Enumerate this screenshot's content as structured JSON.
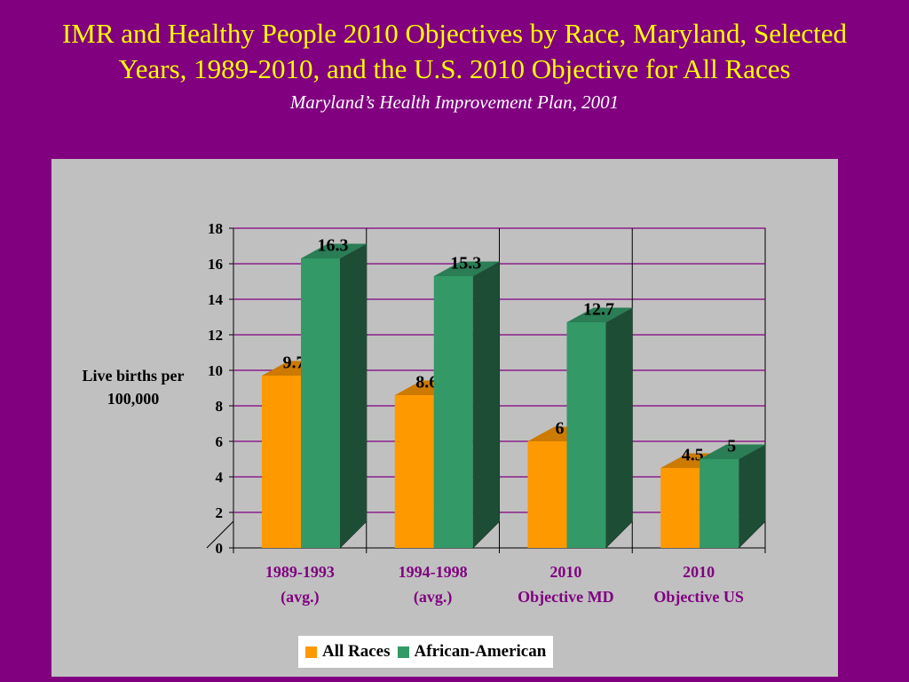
{
  "title_line1": "IMR and Healthy People 2010 Objectives by Race, Maryland, Selected",
  "title_line2": "Years, 1989-2010, and the U.S. 2010 Objective for All Races",
  "subtitle": "Maryland’s Health Improvement Plan, 2001",
  "colors": {
    "background": "#800080",
    "title": "#ffff00",
    "panel": "#c0c0c0",
    "all_races": "#ff9900",
    "african_american": "#339966"
  },
  "chart_data": {
    "type": "bar",
    "title": "IMR and Healthy People 2010 Objectives by Race, Maryland, Selected Years, 1989-2010, and the U.S. 2010 Objective for All Races",
    "subtitle": "Maryland’s Health Improvement Plan, 2001",
    "ylabel_line1": "Live births per",
    "ylabel_line2": "100,000",
    "xlabel": "",
    "ylim": [
      0,
      18
    ],
    "yticks": [
      0,
      2,
      4,
      6,
      8,
      10,
      12,
      14,
      16,
      18
    ],
    "grid": true,
    "legend_position": "bottom",
    "categories": [
      [
        "1989-1993",
        "(avg.)"
      ],
      [
        "1994-1998",
        "(avg.)"
      ],
      [
        "2010",
        "Objective MD"
      ],
      [
        "2010",
        "Objective US"
      ]
    ],
    "series": [
      {
        "name": "All Races",
        "values": [
          9.7,
          8.6,
          6,
          4.5
        ]
      },
      {
        "name": "African-American",
        "values": [
          16.3,
          15.3,
          12.7,
          5
        ]
      }
    ]
  }
}
